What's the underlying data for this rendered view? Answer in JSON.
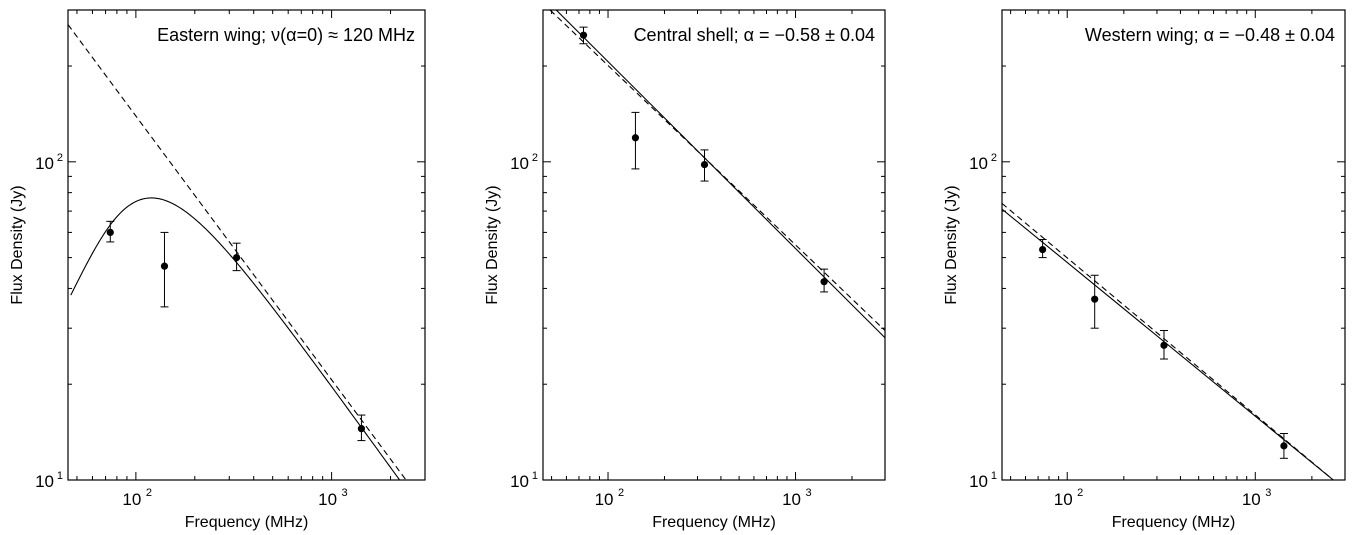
{
  "figure": {
    "line_color": "#000000",
    "background": "#ffffff"
  },
  "chart_data": [
    {
      "type": "scatter",
      "title": "Eastern wing; ν(α=0) ≈ 120 MHz",
      "xlabel": "Frequency (MHz)",
      "ylabel": "Flux Density (Jy)",
      "xscale": "log",
      "yscale": "log",
      "xlim": [
        45,
        3000
      ],
      "ylim": [
        10,
        300
      ],
      "xticks": [
        {
          "value": 100,
          "label": "10",
          "exp": "2"
        },
        {
          "value": 1000,
          "label": "10",
          "exp": "3"
        }
      ],
      "yticks": [
        {
          "value": 10,
          "label": "10",
          "exp": "1"
        },
        {
          "value": 100,
          "label": "10",
          "exp": "2"
        }
      ],
      "grid": false,
      "points": [
        {
          "x": 74,
          "y": 60,
          "ylo": 56,
          "yhi": 65
        },
        {
          "x": 140,
          "y": 47,
          "ylo": 35,
          "yhi": 60
        },
        {
          "x": 327,
          "y": 50,
          "ylo": 45.5,
          "yhi": 55.5
        },
        {
          "x": 1420,
          "y": 14.5,
          "ylo": 13.3,
          "yhi": 16
        }
      ],
      "curves": [
        {
          "style": "dashed",
          "kind": "powerlaw",
          "x0": 45,
          "y0": 270,
          "x1": 2400,
          "y1": 10
        },
        {
          "style": "solid",
          "kind": "turnover",
          "nu_peak": 120,
          "y_peak": 77,
          "alpha": -0.85,
          "x_start": 46.5,
          "x_end": 2250
        }
      ]
    },
    {
      "type": "scatter",
      "title": "Central shell; α = −0.58 ± 0.04",
      "xlabel": "Frequency (MHz)",
      "ylabel": "Flux Density (Jy)",
      "xscale": "log",
      "yscale": "log",
      "xlim": [
        45,
        3000
      ],
      "ylim": [
        10,
        300
      ],
      "xticks": [
        {
          "value": 100,
          "label": "10",
          "exp": "2"
        },
        {
          "value": 1000,
          "label": "10",
          "exp": "3"
        }
      ],
      "yticks": [
        {
          "value": 10,
          "label": "10",
          "exp": "1"
        },
        {
          "value": 100,
          "label": "10",
          "exp": "2"
        }
      ],
      "grid": false,
      "points": [
        {
          "x": 74,
          "y": 250,
          "ylo": 235,
          "yhi": 265
        },
        {
          "x": 140,
          "y": 119,
          "ylo": 95,
          "yhi": 143
        },
        {
          "x": 327,
          "y": 98,
          "ylo": 87,
          "yhi": 109
        },
        {
          "x": 1420,
          "y": 42,
          "ylo": 39,
          "yhi": 46
        }
      ],
      "curves": [
        {
          "style": "solid",
          "kind": "powerlaw",
          "x0": 45,
          "y0": 330,
          "x1": 3000,
          "y1": 28
        },
        {
          "style": "dashed",
          "kind": "powerlaw",
          "x0": 45,
          "y0": 315,
          "x1": 3000,
          "y1": 29.5
        }
      ]
    },
    {
      "type": "scatter",
      "title": "Western wing; α = −0.48 ± 0.04",
      "xlabel": "Frequency (MHz)",
      "ylabel": "Flux Density (Jy)",
      "xscale": "log",
      "yscale": "log",
      "xlim": [
        45,
        3000
      ],
      "ylim": [
        10,
        300
      ],
      "xticks": [
        {
          "value": 100,
          "label": "10",
          "exp": "2"
        },
        {
          "value": 1000,
          "label": "10",
          "exp": "3"
        }
      ],
      "yticks": [
        {
          "value": 10,
          "label": "10",
          "exp": "1"
        },
        {
          "value": 100,
          "label": "10",
          "exp": "2"
        }
      ],
      "grid": false,
      "points": [
        {
          "x": 74,
          "y": 53,
          "ylo": 50,
          "yhi": 57
        },
        {
          "x": 140,
          "y": 37,
          "ylo": 30,
          "yhi": 44
        },
        {
          "x": 327,
          "y": 26.5,
          "ylo": 24,
          "yhi": 29.5
        },
        {
          "x": 1420,
          "y": 12.8,
          "ylo": 11.7,
          "yhi": 14
        }
      ],
      "curves": [
        {
          "style": "solid",
          "kind": "powerlaw",
          "x0": 45,
          "y0": 71,
          "x1": 2600,
          "y1": 10
        },
        {
          "style": "dashed",
          "kind": "powerlaw",
          "x0": 45,
          "y0": 74,
          "x1": 2600,
          "y1": 10
        }
      ]
    }
  ]
}
